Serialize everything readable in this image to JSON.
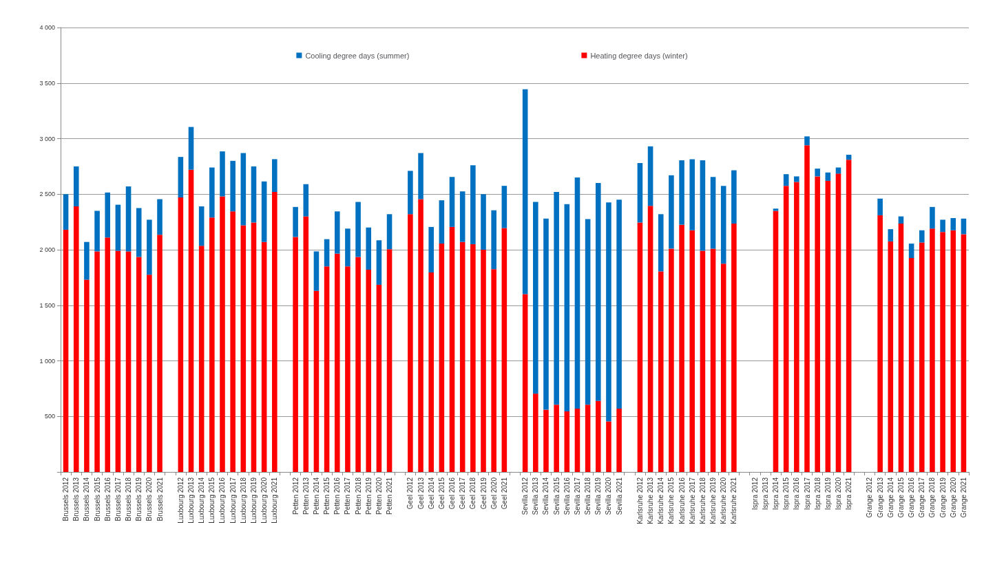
{
  "chart_data": {
    "type": "bar",
    "stacked": true,
    "legend": "top",
    "grid": "y",
    "categories": [
      "Brussels 2012",
      "Brussels 2013",
      "Brussels 2014",
      "Brussels 2015",
      "Brussels 2016",
      "Brussels 2017",
      "Brussels 2018",
      "Brussels 2019",
      "Brussels 2020",
      "Brussels 2021",
      null,
      "Luxbourg 2012",
      "Luxbourg 2013",
      "Luxbourg 2014",
      "Luxbourg 2015",
      "Luxbourg 2016",
      "Luxbourg 2017",
      "Luxbourg 2018",
      "Luxbourg 2019",
      "Luxbourg 2020",
      "Luxbourg 2021",
      null,
      "Petten 2012",
      "Petten 2013",
      "Petten 2014",
      "Petten 2015",
      "Petten 2016",
      "Petten 2017",
      "Petten 2018",
      "Petten 2019",
      "Petten 2020",
      "Petten 2021",
      null,
      "Geel 2012",
      "Geel 2013",
      "Geel 2014",
      "Geel 2015",
      "Geel 2016",
      "Geel 2017",
      "Geel 2018",
      "Geel 2019",
      "Geel 2020",
      "Geel 2021",
      null,
      "Sevilla 2012",
      "Sevilla 2013",
      "Sevilla 2014",
      "Sevilla 2015",
      "Sevilla 2016",
      "Sevilla 2017",
      "Sevilla 2018",
      "Sevilla 2019",
      "Sevilla 2020",
      "Sevilla 2021",
      null,
      "Karlsruhe 2012",
      "Karlsruhe 2013",
      "Karlsruhe 2014",
      "Karlsruhe 2015",
      "Karlsruhe 2016",
      "Karlsruhe 2017",
      "Karlsruhe 2018",
      "Karlsruhe 2019",
      "Karlsruhe 2020",
      "Karlsruhe 2021",
      null,
      "Ispra 2012",
      "Ispra 2013",
      "Ispra 2014",
      "Ispra 2015",
      "Ispra 2016",
      "Ispra 2017",
      "Ispra 2018",
      "Ispra 2019",
      "Ispra 2020",
      "Ispra 2021",
      null,
      "Grange 2012",
      "Grange 2013",
      "Grange 2014",
      "Grange 2015",
      "Grange 2016",
      "Grange 2017",
      "Grange 2018",
      "Grange 2019",
      "Grange 2020",
      "Grange 2021"
    ],
    "series": [
      {
        "name": "Heating degree days (winter)",
        "color": "#ff0000",
        "values": [
          2180,
          2390,
          1730,
          1985,
          2110,
          1990,
          1985,
          1935,
          1775,
          2135,
          null,
          2470,
          2720,
          2035,
          2290,
          2480,
          2345,
          2220,
          2245,
          2070,
          2520,
          null,
          2115,
          2300,
          1630,
          1850,
          1965,
          1850,
          1935,
          1820,
          1685,
          2005,
          null,
          2320,
          2455,
          1795,
          2055,
          2205,
          2070,
          2050,
          2000,
          1825,
          2195,
          null,
          1600,
          705,
          560,
          605,
          545,
          570,
          605,
          640,
          455,
          570,
          null,
          2245,
          2395,
          1805,
          2010,
          2225,
          2175,
          1990,
          2010,
          1875,
          2235,
          null,
          null,
          null,
          2350,
          2575,
          2610,
          2940,
          2660,
          2620,
          2685,
          2810,
          null,
          null,
          2310,
          2075,
          2235,
          1925,
          2065,
          2190,
          2160,
          2175,
          2140
        ]
      },
      {
        "name": "Cooling degree days (summer)",
        "color": "#0070c0",
        "values": [
          320,
          360,
          340,
          365,
          405,
          415,
          585,
          440,
          495,
          320,
          null,
          365,
          385,
          355,
          450,
          405,
          455,
          650,
          505,
          545,
          295,
          null,
          270,
          290,
          355,
          245,
          380,
          340,
          495,
          380,
          400,
          315,
          null,
          390,
          415,
          410,
          390,
          450,
          455,
          710,
          500,
          530,
          380,
          null,
          1845,
          1725,
          1720,
          1915,
          1865,
          2080,
          1670,
          1960,
          1970,
          1880,
          null,
          535,
          535,
          515,
          660,
          580,
          640,
          815,
          645,
          700,
          480,
          null,
          null,
          null,
          20,
          105,
          50,
          80,
          70,
          75,
          55,
          45,
          null,
          null,
          150,
          110,
          65,
          130,
          110,
          195,
          110,
          110,
          140
        ]
      }
    ],
    "ylim": [
      0,
      4000
    ],
    "yticks": [
      {
        "value": 0,
        "label": null
      },
      {
        "value": 500,
        "label": "500"
      },
      {
        "value": 1000,
        "label": "1 000"
      },
      {
        "value": 1500,
        "label": "1 500"
      },
      {
        "value": 2000,
        "label": "2 000"
      },
      {
        "value": 2500,
        "label": "2 500"
      },
      {
        "value": 3000,
        "label": "3 000"
      },
      {
        "value": 3500,
        "label": "3 500"
      },
      {
        "value": 4000,
        "label": "4 000"
      }
    ]
  }
}
